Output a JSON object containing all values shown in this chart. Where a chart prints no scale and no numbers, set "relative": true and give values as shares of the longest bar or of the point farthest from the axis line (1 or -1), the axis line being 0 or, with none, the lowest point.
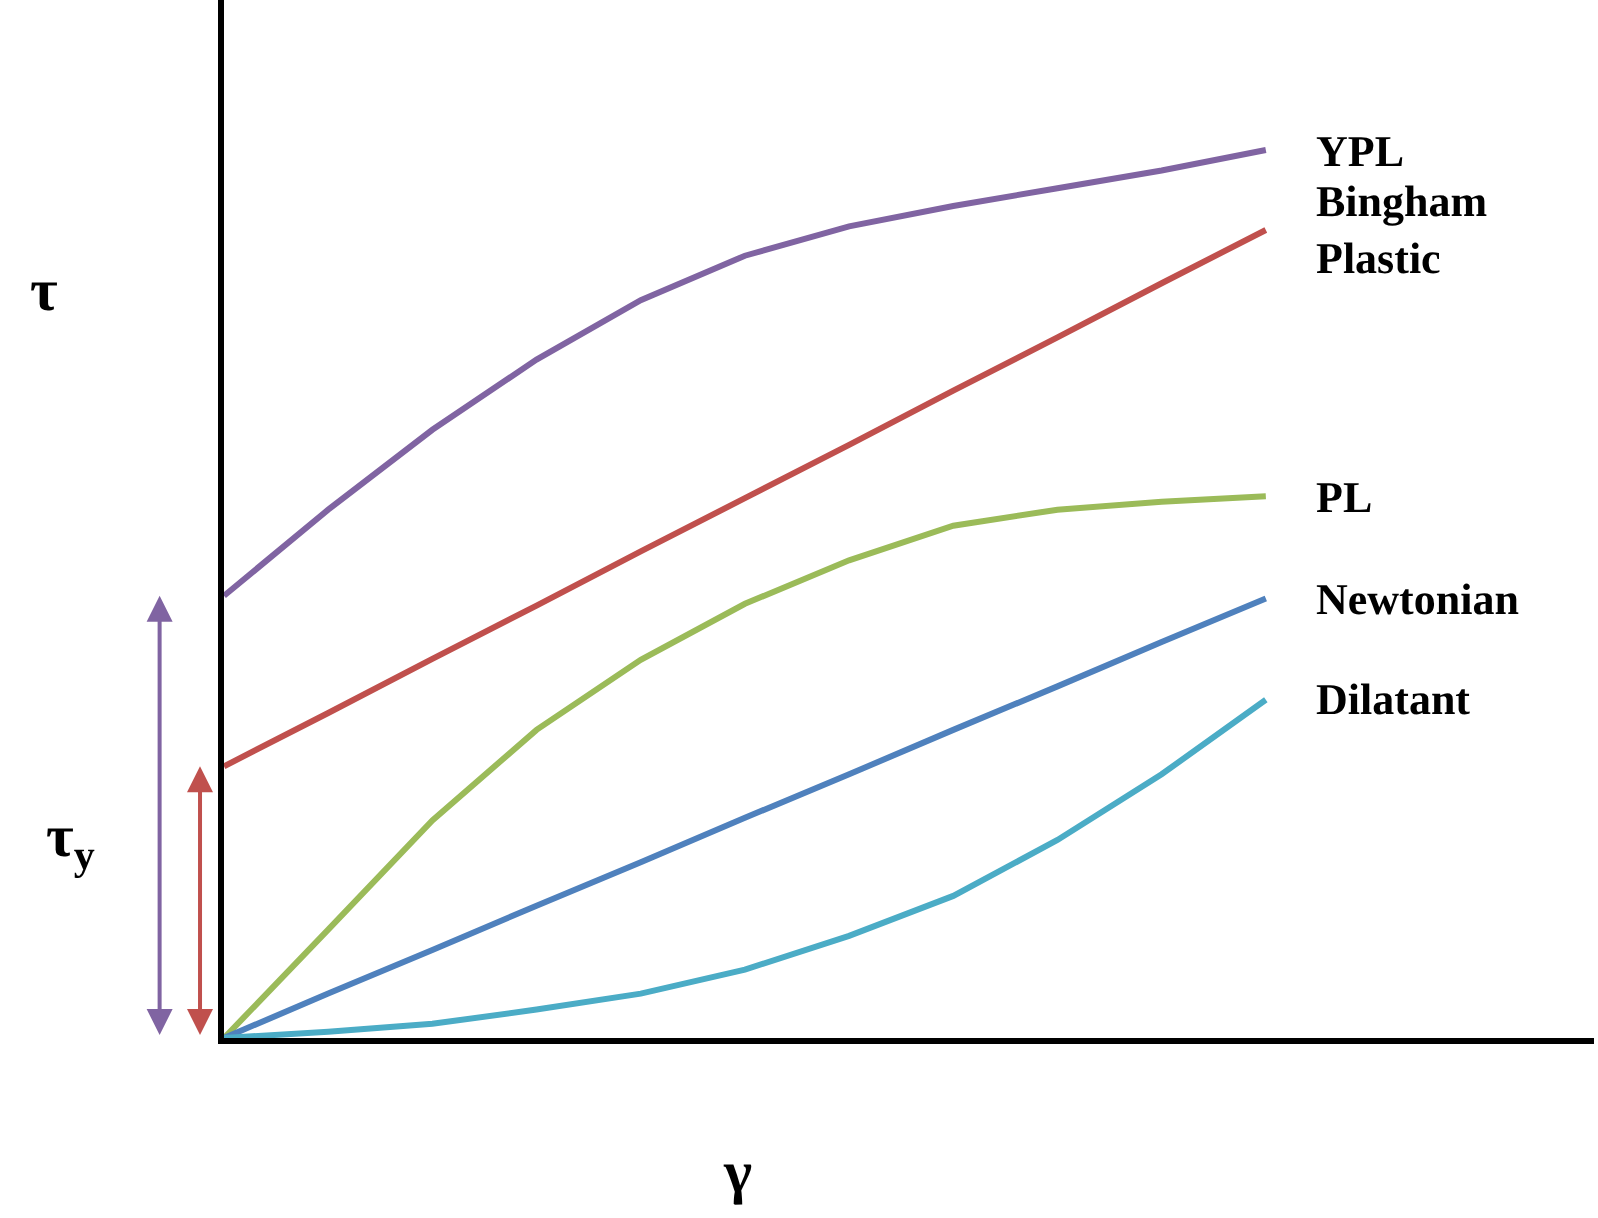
{
  "chart_data": {
    "type": "line",
    "relative": true,
    "xlabel": "γ",
    "ylabel": "τ",
    "annotations": [
      "τ$_{y}$"
    ],
    "grid": false,
    "legend": false,
    "marker": "none",
    "line_style": "solid",
    "categories": [
      null,
      null,
      null,
      null,
      null,
      null,
      null,
      null,
      null,
      null,
      null,
      null,
      null,
      null
    ],
    "series": [
      {
        "name": "YPL",
        "color": "#8064a2",
        "values": [
          0.498,
          0.595,
          0.685,
          0.764,
          0.831,
          0.881,
          0.914,
          0.937,
          0.957,
          0.977,
          1,
          null,
          null,
          null
        ]
      },
      {
        "name": "Bingham Plastic",
        "color": "#c0504d",
        "values": [
          0.306,
          0.366,
          0.427,
          0.487,
          0.548,
          0.608,
          0.668,
          0.729,
          0.789,
          0.85,
          0.91,
          null,
          null,
          null
        ]
      },
      {
        "name": "PL",
        "color": "#9bbb59",
        "values": [
          0,
          0.122,
          0.245,
          0.347,
          0.426,
          0.489,
          0.538,
          0.577,
          0.595,
          0.604,
          0.61,
          null,
          null,
          null
        ]
      },
      {
        "name": "Newtonian",
        "color": "#4f81bd",
        "values": [
          0,
          0.05,
          0.099,
          0.149,
          0.198,
          0.248,
          0.297,
          0.347,
          0.396,
          0.446,
          0.495,
          null,
          null,
          null
        ]
      },
      {
        "name": "Dilatant",
        "color": "#4bacc6",
        "values": [
          0,
          0.007,
          0.016,
          0.032,
          0.05,
          0.077,
          0.115,
          0.16,
          0.223,
          0.297,
          0.381,
          null,
          null,
          null
        ]
      }
    ]
  }
}
